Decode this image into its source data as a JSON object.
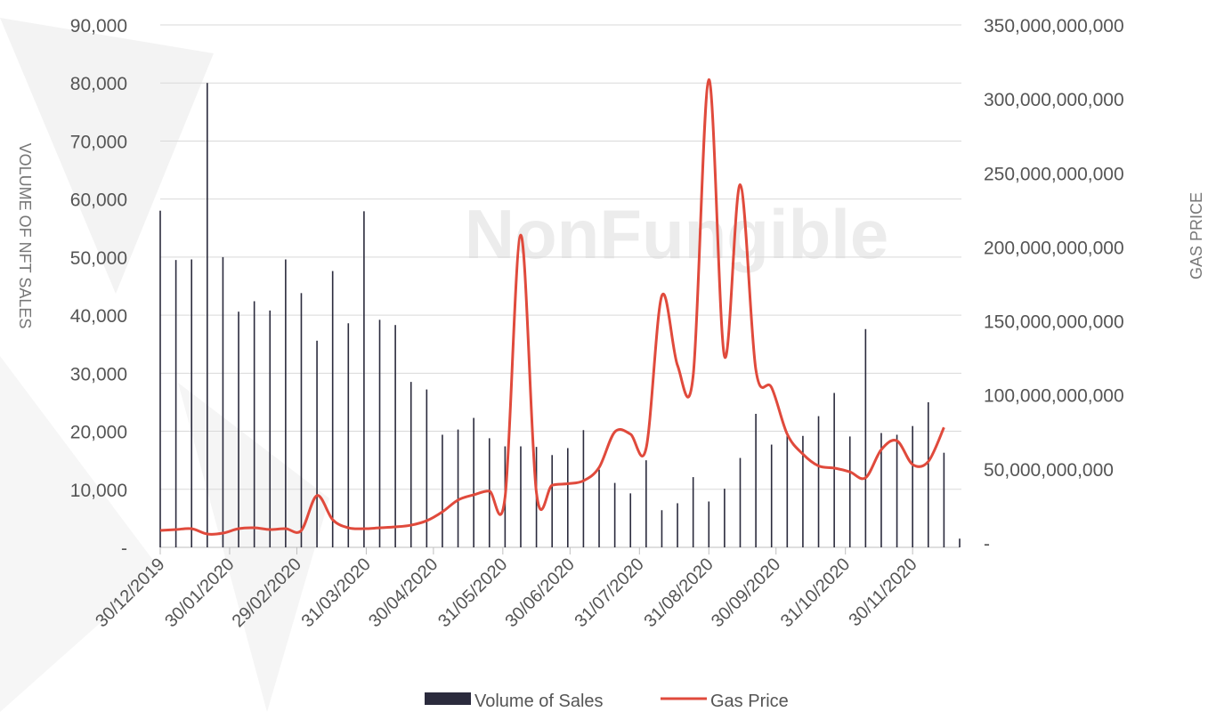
{
  "chart_data": {
    "type": "bar+line",
    "watermark": "NonFungible",
    "ylabel": "VOLUME OF NFT SALES",
    "y2label": "GAS PRICE",
    "legend": "bottom",
    "grid": true,
    "x": [
      "2019-12-30",
      "2020-01-06",
      "2020-01-13",
      "2020-01-20",
      "2020-01-27",
      "2020-02-03",
      "2020-02-10",
      "2020-02-17",
      "2020-02-24",
      "2020-03-02",
      "2020-03-09",
      "2020-03-16",
      "2020-03-23",
      "2020-03-30",
      "2020-04-06",
      "2020-04-13",
      "2020-04-20",
      "2020-04-27",
      "2020-05-04",
      "2020-05-11",
      "2020-05-18",
      "2020-05-25",
      "2020-06-01",
      "2020-06-08",
      "2020-06-15",
      "2020-06-22",
      "2020-06-29",
      "2020-07-06",
      "2020-07-13",
      "2020-07-20",
      "2020-07-27",
      "2020-08-03",
      "2020-08-10",
      "2020-08-17",
      "2020-08-24",
      "2020-08-31",
      "2020-09-07",
      "2020-09-14",
      "2020-09-21",
      "2020-09-28",
      "2020-10-05",
      "2020-10-12",
      "2020-10-19",
      "2020-10-26",
      "2020-11-02",
      "2020-11-09",
      "2020-11-16",
      "2020-11-23",
      "2020-11-30",
      "2020-12-07",
      "2020-12-14",
      "2020-12-21"
    ],
    "xlim": [
      "2019-12-30",
      "2020-12-21"
    ],
    "xticks": [
      {
        "value": "2019-12-30",
        "label": "30/12/2019"
      },
      {
        "value": "2020-01-30",
        "label": "30/01/2020"
      },
      {
        "value": "2020-02-29",
        "label": "29/02/2020"
      },
      {
        "value": "2020-03-31",
        "label": "31/03/2020"
      },
      {
        "value": "2020-04-30",
        "label": "30/04/2020"
      },
      {
        "value": "2020-05-31",
        "label": "31/05/2020"
      },
      {
        "value": "2020-06-30",
        "label": "30/06/2020"
      },
      {
        "value": "2020-07-31",
        "label": "31/07/2020"
      },
      {
        "value": "2020-08-31",
        "label": "31/08/2020"
      },
      {
        "value": "2020-09-30",
        "label": "30/09/2020"
      },
      {
        "value": "2020-10-31",
        "label": "31/10/2020"
      },
      {
        "value": "2020-11-30",
        "label": "30/11/2020"
      }
    ],
    "ylim": [
      0,
      90000
    ],
    "yticks": [
      {
        "value": 0,
        "label": "-"
      },
      {
        "value": 10000,
        "label": "10,000"
      },
      {
        "value": 20000,
        "label": "20,000"
      },
      {
        "value": 30000,
        "label": "30,000"
      },
      {
        "value": 40000,
        "label": "40,000"
      },
      {
        "value": 50000,
        "label": "50,000"
      },
      {
        "value": 60000,
        "label": "60,000"
      },
      {
        "value": 70000,
        "label": "70,000"
      },
      {
        "value": 80000,
        "label": "80,000"
      },
      {
        "value": 90000,
        "label": "90,000"
      }
    ],
    "y2lim": [
      0,
      350000000000
    ],
    "y2ticks": [
      {
        "value": 0,
        "label": "-"
      },
      {
        "value": 50000000000,
        "label": "50,000,000,000"
      },
      {
        "value": 100000000000,
        "label": "100,000,000,000"
      },
      {
        "value": 150000000000,
        "label": "150,000,000,000"
      },
      {
        "value": 200000000000,
        "label": "200,000,000,000"
      },
      {
        "value": 250000000000,
        "label": "250,000,000,000"
      },
      {
        "value": 300000000000,
        "label": "300,000,000,000"
      },
      {
        "value": 350000000000,
        "label": "350,000,000,000"
      }
    ],
    "series": [
      {
        "name": "Volume  of Sales",
        "type": "bar",
        "color": "#2b2b3d",
        "values": [
          58000,
          49500,
          49600,
          80000,
          50000,
          40600,
          42400,
          40800,
          49600,
          43800,
          35600,
          47600,
          38600,
          57900,
          39200,
          38300,
          28500,
          27200,
          19400,
          20300,
          22300,
          18800,
          17400,
          17400,
          17300,
          15900,
          17100,
          20200,
          13400,
          11100,
          9300,
          15000,
          6400,
          7600,
          12100,
          7900,
          10100,
          15400,
          23000,
          17700,
          19500,
          19200,
          22600,
          26600,
          19100,
          37600,
          19700,
          19400,
          20900,
          25000,
          16300,
          1500
        ]
      },
      {
        "name": "Gas Price",
        "type": "line",
        "axis": "y2",
        "color": "#e04a3c",
        "values": [
          8400000000,
          9000000000,
          9600000000,
          6000000000,
          6600000000,
          9600000000,
          10200000000,
          9000000000,
          9600000000,
          8400000000,
          32000000000,
          15700000000,
          10200000000,
          9600000000,
          10200000000,
          10800000000,
          12000000000,
          15000000000,
          21000000000,
          29000000000,
          32500000000,
          35000000000,
          31000000000,
          208000000000,
          34000000000,
          39000000000,
          40000000000,
          42000000000,
          51000000000,
          75000000000,
          73500000000,
          64000000000,
          167000000000,
          120000000000,
          113000000000,
          313000000000,
          126000000000,
          242000000000,
          117000000000,
          105000000000,
          73500000000,
          60000000000,
          52000000000,
          50600000000,
          48000000000,
          44000000000,
          63000000000,
          69000000000,
          53000000000,
          55000000000,
          78000000000,
          null
        ]
      }
    ]
  }
}
